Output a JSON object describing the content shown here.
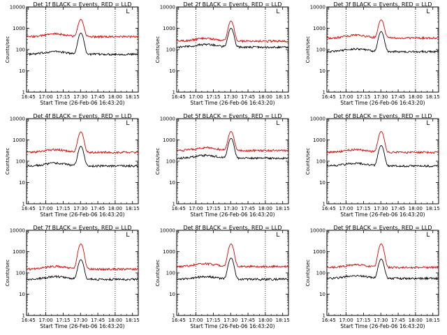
{
  "figure": {
    "ylabel": "Counts/sec",
    "xlabel": "Start Time (26-Feb-06 16:43:20)",
    "xticks": [
      "16:45",
      "17:00",
      "17:15",
      "17:30",
      "17:45",
      "18:00",
      "18:15"
    ],
    "yticks": [
      "1",
      "10",
      "100",
      "1000",
      "10000"
    ],
    "corner_mark": "L"
  },
  "chart_data": [
    {
      "type": "line",
      "title": "Det 1f BLACK = Events, RED = LLD",
      "yscale": "log",
      "ylim": [
        1,
        10000
      ],
      "xrange": [
        "16:43:20",
        "18:20"
      ],
      "series": [
        {
          "name": "Events",
          "color": "#000000",
          "baseline": 60,
          "peak": 600
        },
        {
          "name": "LLD",
          "color": "#e00000",
          "baseline": 400,
          "peak": 2600
        }
      ]
    },
    {
      "type": "line",
      "title": "Det 2f BLACK = Events, RED = LLD",
      "yscale": "log",
      "ylim": [
        1,
        10000
      ],
      "xrange": [
        "16:43:20",
        "18:20"
      ],
      "series": [
        {
          "name": "Events",
          "color": "#000000",
          "baseline": 130,
          "peak": 1000
        },
        {
          "name": "LLD",
          "color": "#e00000",
          "baseline": 250,
          "peak": 2200
        }
      ]
    },
    {
      "type": "line",
      "title": "Det 3f BLACK = Events, RED = LLD",
      "yscale": "log",
      "ylim": [
        1,
        10000
      ],
      "xrange": [
        "16:43:20",
        "18:20"
      ],
      "series": [
        {
          "name": "Events",
          "color": "#000000",
          "baseline": 80,
          "peak": 700
        },
        {
          "name": "LLD",
          "color": "#e00000",
          "baseline": 350,
          "peak": 2500
        }
      ]
    },
    {
      "type": "line",
      "title": "Det 4f BLACK = Events, RED = LLD",
      "yscale": "log",
      "ylim": [
        1,
        10000
      ],
      "xrange": [
        "16:43:20",
        "18:20"
      ],
      "series": [
        {
          "name": "Events",
          "color": "#000000",
          "baseline": 60,
          "peak": 500
        },
        {
          "name": "LLD",
          "color": "#e00000",
          "baseline": 260,
          "peak": 2400
        }
      ]
    },
    {
      "type": "line",
      "title": "Det 5f BLACK = Events, RED = LLD",
      "yscale": "log",
      "ylim": [
        1,
        10000
      ],
      "xrange": [
        "16:43:20",
        "18:20"
      ],
      "series": [
        {
          "name": "Events",
          "color": "#000000",
          "baseline": 140,
          "peak": 1200
        },
        {
          "name": "LLD",
          "color": "#e00000",
          "baseline": 320,
          "peak": 2500
        }
      ]
    },
    {
      "type": "line",
      "title": "Det 6f BLACK = Events, RED = LLD",
      "yscale": "log",
      "ylim": [
        1,
        10000
      ],
      "xrange": [
        "16:43:20",
        "18:20"
      ],
      "series": [
        {
          "name": "Events",
          "color": "#000000",
          "baseline": 60,
          "peak": 550
        },
        {
          "name": "LLD",
          "color": "#e00000",
          "baseline": 260,
          "peak": 2500
        }
      ]
    },
    {
      "type": "line",
      "title": "Det 7f BLACK = Events, RED = LLD",
      "yscale": "log",
      "ylim": [
        1,
        10000
      ],
      "xrange": [
        "16:43:20",
        "18:20"
      ],
      "series": [
        {
          "name": "Events",
          "color": "#000000",
          "baseline": 50,
          "peak": 420
        },
        {
          "name": "LLD",
          "color": "#e00000",
          "baseline": 150,
          "peak": 2300
        }
      ]
    },
    {
      "type": "line",
      "title": "Det 8f BLACK = Events, RED = LLD",
      "yscale": "log",
      "ylim": [
        1,
        10000
      ],
      "xrange": [
        "16:43:20",
        "18:20"
      ],
      "series": [
        {
          "name": "Events",
          "color": "#000000",
          "baseline": 50,
          "peak": 500
        },
        {
          "name": "LLD",
          "color": "#e00000",
          "baseline": 200,
          "peak": 2300
        }
      ]
    },
    {
      "type": "line",
      "title": "Det 9f BLACK = Events, RED = LLD",
      "yscale": "log",
      "ylim": [
        1,
        10000
      ],
      "xrange": [
        "16:43:20",
        "18:20"
      ],
      "series": [
        {
          "name": "Events",
          "color": "#000000",
          "baseline": 55,
          "peak": 450
        },
        {
          "name": "LLD",
          "color": "#e00000",
          "baseline": 180,
          "peak": 2300
        }
      ]
    }
  ]
}
